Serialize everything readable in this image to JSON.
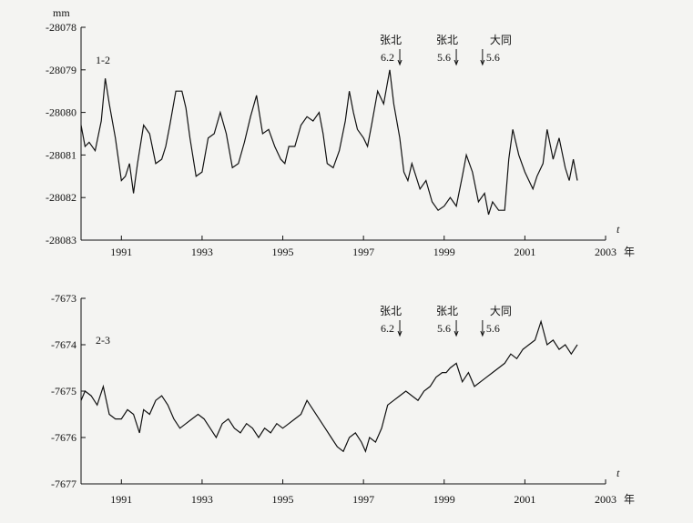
{
  "chart_data": [
    {
      "type": "line",
      "unit_label": "mm",
      "panel_label": "1-2",
      "ylim": [
        -28083,
        -28078
      ],
      "yticks": [
        "-28078",
        "-28079",
        "-28080",
        "-28081",
        "-28082",
        "-28083"
      ],
      "xlim": [
        1990.0,
        2003.0
      ],
      "xticks": [
        "1991",
        "1993",
        "1995",
        "1997",
        "1999",
        "2001",
        "2003"
      ],
      "x_unit": "年",
      "x_axis_symbol": "t",
      "events": [
        {
          "place": "张北",
          "mag": "6.2",
          "x": 1997.9
        },
        {
          "place": "张北",
          "mag": "5.6",
          "x": 1999.3
        },
        {
          "place": "大同",
          "mag": "5.6",
          "x": 1999.95
        }
      ],
      "series": [
        {
          "x": [
            1990.0,
            1990.1,
            1990.2,
            1990.35,
            1990.5,
            1990.6,
            1990.7,
            1990.85,
            1991.0,
            1991.1,
            1991.2,
            1991.3,
            1991.4,
            1991.55,
            1991.7,
            1991.85,
            1992.0,
            1992.1,
            1992.2,
            1992.35,
            1992.5,
            1992.6,
            1992.7,
            1992.85,
            1993.0,
            1993.15,
            1993.3,
            1993.45,
            1993.6,
            1993.75,
            1993.9,
            1994.05,
            1994.2,
            1994.35,
            1994.5,
            1994.65,
            1994.8,
            1994.95,
            1995.05,
            1995.15,
            1995.3,
            1995.45,
            1995.6,
            1995.75,
            1995.9,
            1996.0,
            1996.1,
            1996.25,
            1996.4,
            1996.55,
            1996.65,
            1996.75,
            1996.85,
            1997.0,
            1997.1,
            1997.2,
            1997.35,
            1997.5,
            1997.65,
            1997.75,
            1997.9,
            1998.0,
            1998.1,
            1998.2,
            1998.3,
            1998.4,
            1998.55,
            1998.7,
            1998.85,
            1999.0,
            1999.15,
            1999.3,
            1999.45,
            1999.55,
            1999.7,
            1999.85,
            2000.0,
            2000.1,
            2000.2,
            2000.35,
            2000.5,
            2000.6,
            2000.7,
            2000.85,
            2001.0,
            2001.1,
            2001.2,
            2001.3,
            2001.45,
            2001.55,
            2001.7,
            2001.85,
            2002.0,
            2002.1,
            2002.2,
            2002.3
          ],
          "y": [
            -28080.3,
            -28080.8,
            -28080.7,
            -28080.9,
            -28080.2,
            -28079.2,
            -28079.8,
            -28080.6,
            -28081.6,
            -28081.5,
            -28081.2,
            -28081.9,
            -28081.2,
            -28080.3,
            -28080.5,
            -28081.2,
            -28081.1,
            -28080.8,
            -28080.3,
            -28079.5,
            -28079.5,
            -28079.9,
            -28080.6,
            -28081.5,
            -28081.4,
            -28080.6,
            -28080.5,
            -28080.0,
            -28080.5,
            -28081.3,
            -28081.2,
            -28080.7,
            -28080.1,
            -28079.6,
            -28080.5,
            -28080.4,
            -28080.8,
            -28081.1,
            -28081.2,
            -28080.8,
            -28080.8,
            -28080.3,
            -28080.1,
            -28080.2,
            -28080.0,
            -28080.5,
            -28081.2,
            -28081.3,
            -28080.9,
            -28080.2,
            -28079.5,
            -28080.0,
            -28080.4,
            -28080.6,
            -28080.8,
            -28080.3,
            -28079.5,
            -28079.8,
            -28079.0,
            -28079.8,
            -28080.6,
            -28081.4,
            -28081.6,
            -28081.2,
            -28081.5,
            -28081.8,
            -28081.6,
            -28082.1,
            -28082.3,
            -28082.2,
            -28082.0,
            -28082.2,
            -28081.5,
            -28081.0,
            -28081.4,
            -28082.1,
            -28081.9,
            -28082.4,
            -28082.1,
            -28082.3,
            -28082.3,
            -28081.1,
            -28080.4,
            -28081.0,
            -28081.4,
            -28081.6,
            -28081.8,
            -28081.5,
            -28081.2,
            -28080.4,
            -28081.1,
            -28080.6,
            -28081.3,
            -28081.6,
            -28081.1,
            -28081.6
          ]
        }
      ]
    },
    {
      "type": "line",
      "panel_label": "2-3",
      "ylim": [
        -7677,
        -7673
      ],
      "yticks": [
        "-7673",
        "-7674",
        "-7675",
        "-7676",
        "-7677"
      ],
      "xlim": [
        1990.0,
        2003.0
      ],
      "xticks": [
        "1991",
        "1993",
        "1995",
        "1997",
        "1999",
        "2001",
        "2003"
      ],
      "x_unit": "年",
      "x_axis_symbol": "t",
      "events": [
        {
          "place": "张北",
          "mag": "6.2",
          "x": 1997.9
        },
        {
          "place": "张北",
          "mag": "5.6",
          "x": 1999.3
        },
        {
          "place": "大同",
          "mag": "5.6",
          "x": 1999.95
        }
      ],
      "series": [
        {
          "x": [
            1990.0,
            1990.1,
            1990.25,
            1990.4,
            1990.55,
            1990.7,
            1990.85,
            1991.0,
            1991.15,
            1991.3,
            1991.45,
            1991.55,
            1991.7,
            1991.85,
            1992.0,
            1992.15,
            1992.3,
            1992.45,
            1992.6,
            1992.75,
            1992.9,
            1993.05,
            1993.2,
            1993.35,
            1993.5,
            1993.65,
            1993.8,
            1993.95,
            1994.1,
            1994.25,
            1994.4,
            1994.55,
            1994.7,
            1994.85,
            1995.0,
            1995.15,
            1995.3,
            1995.45,
            1995.6,
            1995.75,
            1995.9,
            1996.05,
            1996.2,
            1996.35,
            1996.5,
            1996.65,
            1996.8,
            1996.95,
            1997.05,
            1997.15,
            1997.3,
            1997.45,
            1997.6,
            1997.75,
            1997.9,
            1998.05,
            1998.2,
            1998.35,
            1998.5,
            1998.65,
            1998.8,
            1998.95,
            1999.05,
            1999.15,
            1999.3,
            1999.45,
            1999.6,
            1999.75,
            1999.9,
            2000.05,
            2000.2,
            2000.35,
            2000.5,
            2000.65,
            2000.8,
            2000.95,
            2001.1,
            2001.25,
            2001.4,
            2001.55,
            2001.7,
            2001.85,
            2002.0,
            2002.15,
            2002.3
          ],
          "y": [
            -7675.2,
            -7675.0,
            -7675.1,
            -7675.3,
            -7674.9,
            -7675.5,
            -7675.6,
            -7675.6,
            -7675.4,
            -7675.5,
            -7675.9,
            -7675.4,
            -7675.5,
            -7675.2,
            -7675.1,
            -7675.3,
            -7675.6,
            -7675.8,
            -7675.7,
            -7675.6,
            -7675.5,
            -7675.6,
            -7675.8,
            -7676.0,
            -7675.7,
            -7675.6,
            -7675.8,
            -7675.9,
            -7675.7,
            -7675.8,
            -7676.0,
            -7675.8,
            -7675.9,
            -7675.7,
            -7675.8,
            -7675.7,
            -7675.6,
            -7675.5,
            -7675.2,
            -7675.4,
            -7675.6,
            -7675.8,
            -7676.0,
            -7676.2,
            -7676.3,
            -7676.0,
            -7675.9,
            -7676.1,
            -7676.3,
            -7676.0,
            -7676.1,
            -7675.8,
            -7675.3,
            -7675.2,
            -7675.1,
            -7675.0,
            -7675.1,
            -7675.2,
            -7675.0,
            -7674.9,
            -7674.7,
            -7674.6,
            -7674.6,
            -7674.5,
            -7674.4,
            -7674.8,
            -7674.6,
            -7674.9,
            -7674.8,
            -7674.7,
            -7674.6,
            -7674.5,
            -7674.4,
            -7674.2,
            -7674.3,
            -7674.1,
            -7674.0,
            -7673.9,
            -7673.5,
            -7674.0,
            -7673.9,
            -7674.1,
            -7674.0,
            -7674.2,
            -7674.0
          ]
        }
      ]
    }
  ]
}
